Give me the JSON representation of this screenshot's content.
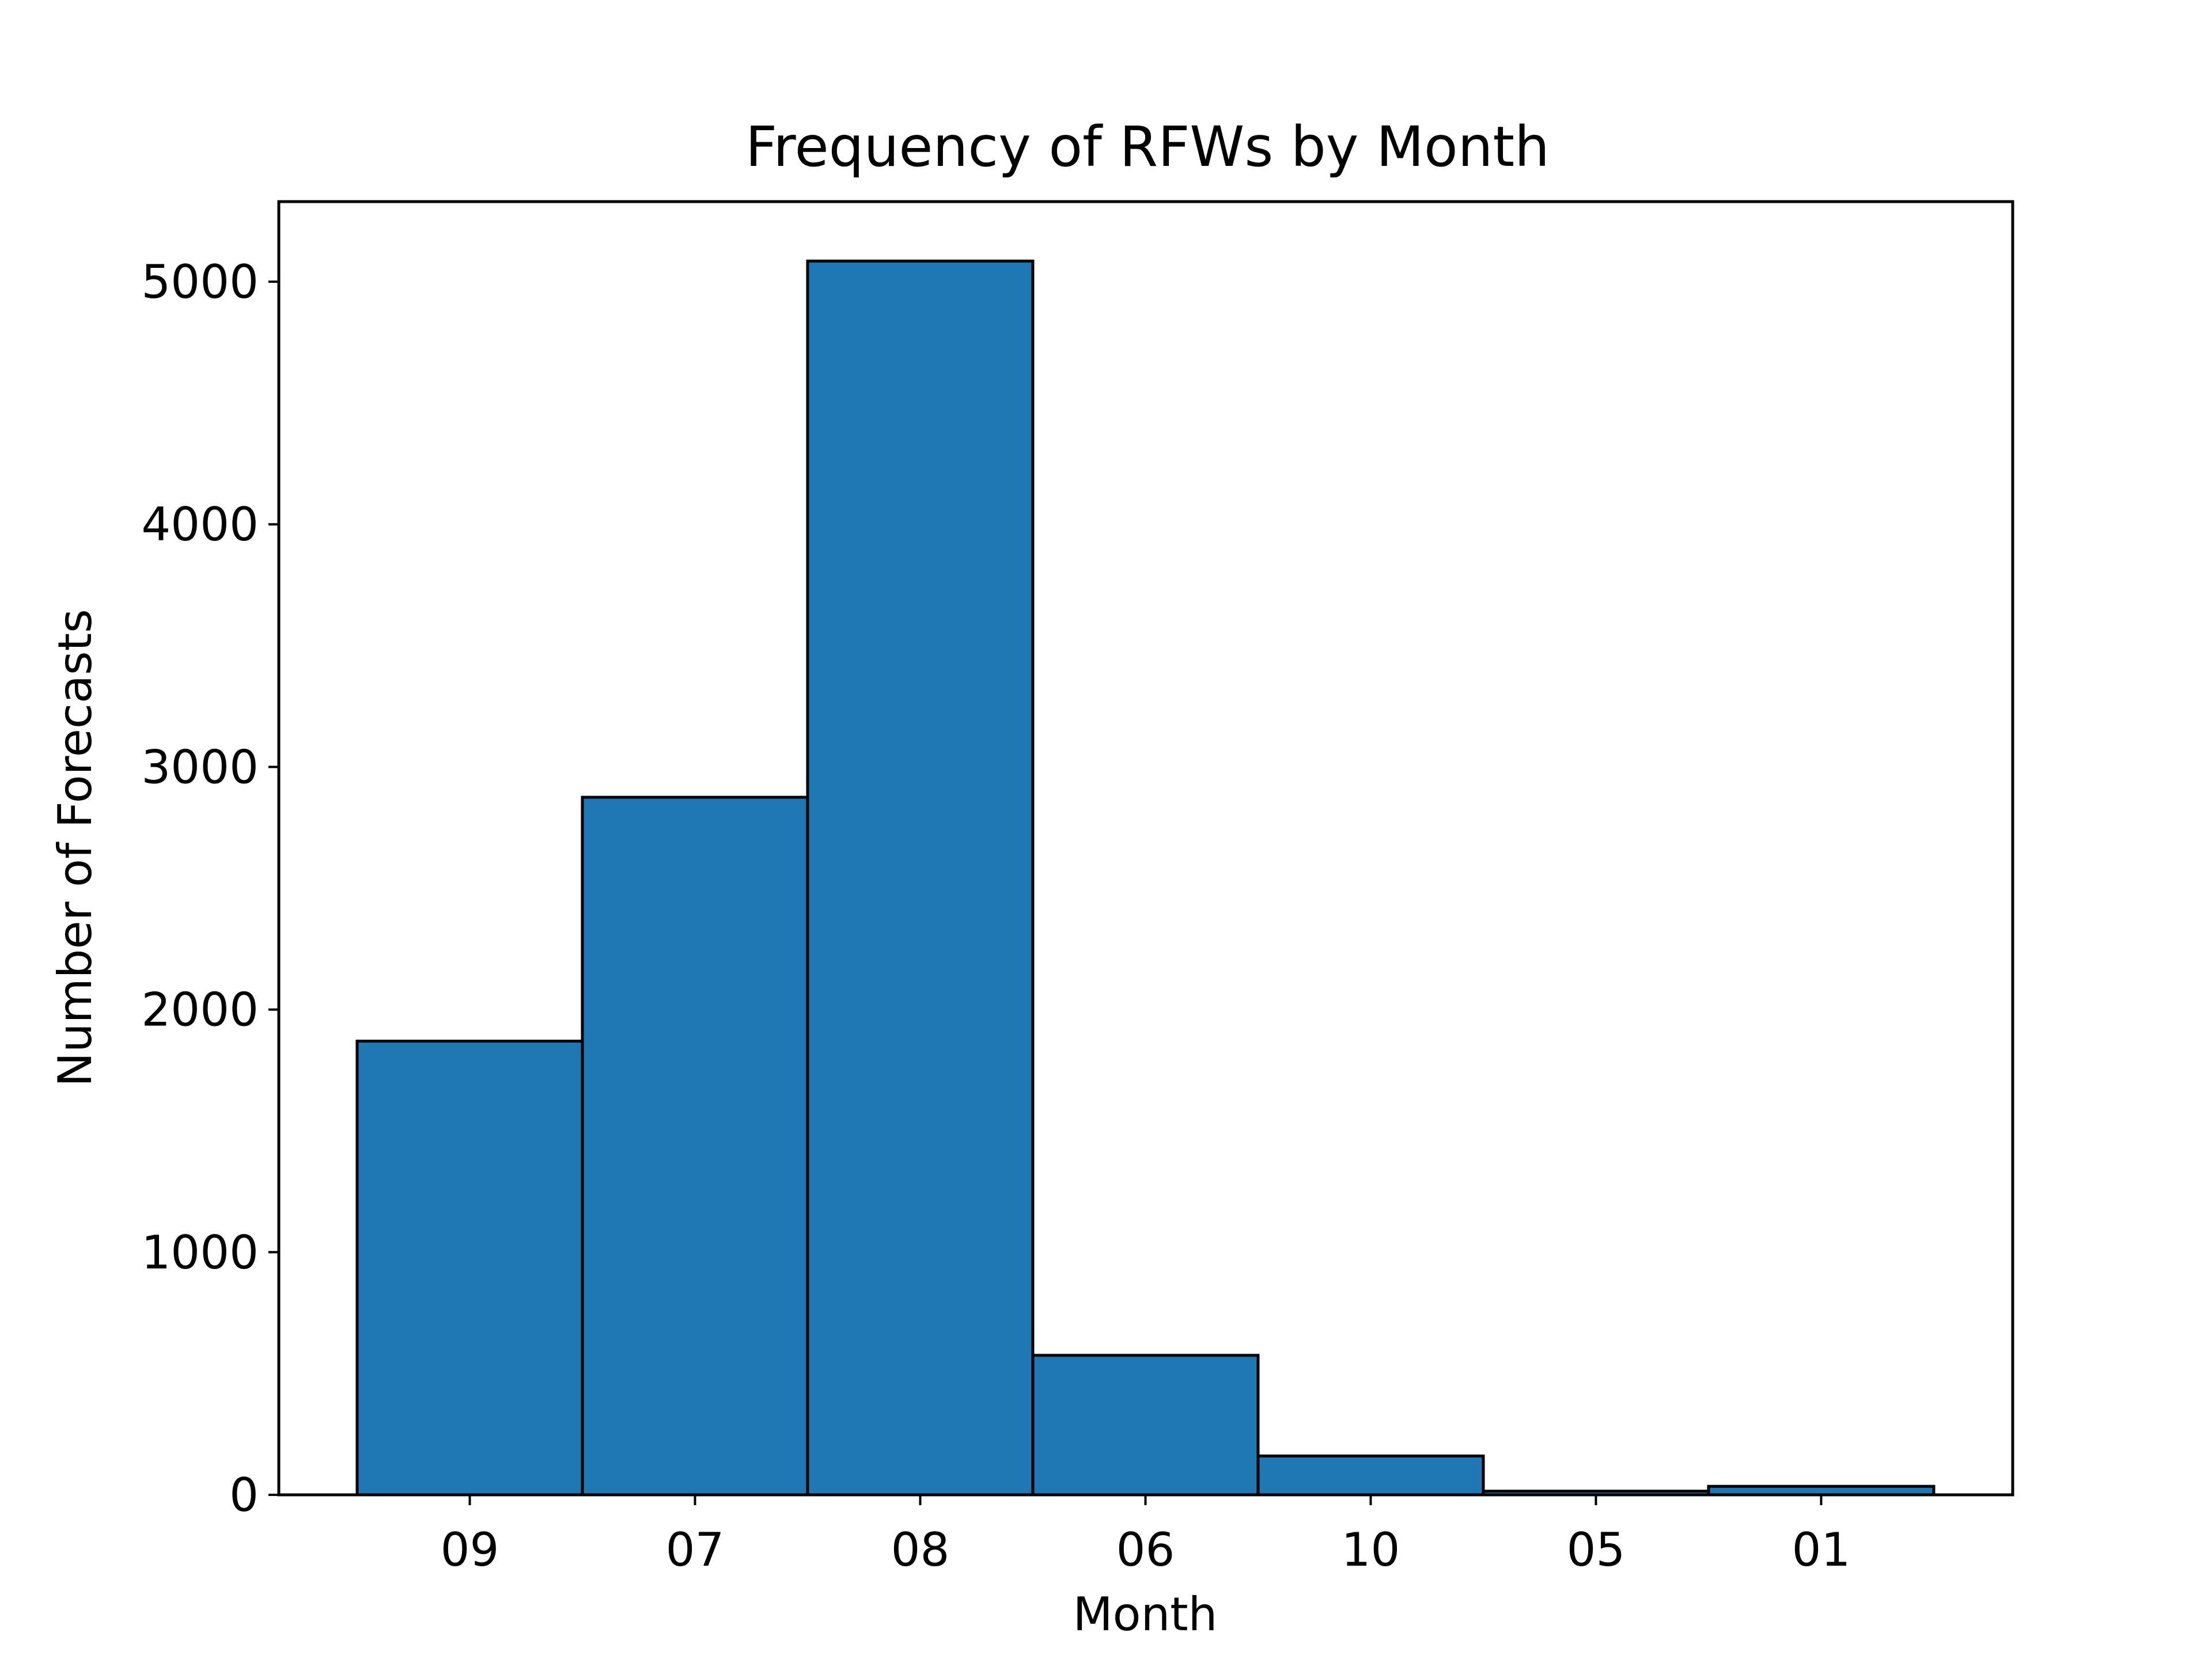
{
  "chart_data": {
    "type": "bar",
    "title": "Frequency of RFWs by Month",
    "xlabel": "Month",
    "ylabel": "Number of Forecasts",
    "categories": [
      "09",
      "07",
      "08",
      "06",
      "10",
      "05",
      "01"
    ],
    "values": [
      1870,
      2875,
      5085,
      575,
      160,
      15,
      35
    ],
    "ylim": [
      0,
      5330
    ],
    "yticks": [
      "0",
      "1000",
      "2000",
      "3000",
      "4000",
      "5000"
    ],
    "grid": false,
    "bar_color": "#1f77b4",
    "edge_color": "#000000"
  }
}
